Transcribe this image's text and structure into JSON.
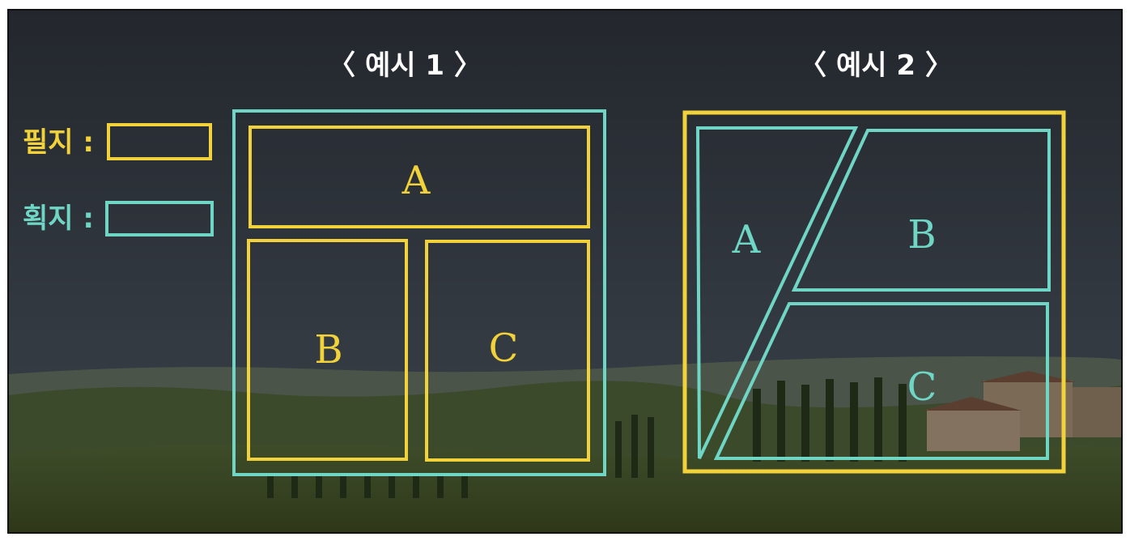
{
  "colors": {
    "pil_ji": "#f2d23a",
    "hoe_ji": "#6fd6c6",
    "sky_top": "#23272d",
    "sky_bottom": "#343b44",
    "hills": "#3a4a2c",
    "field": "#37431e"
  },
  "legend": {
    "pil_ji_label": "필지 :",
    "hoe_ji_label": "획지 :"
  },
  "example1": {
    "title": "〈 예시 1 〉",
    "regions": [
      "A",
      "B",
      "C"
    ]
  },
  "example2": {
    "title": "〈 예시 2 〉",
    "regions": [
      "A",
      "B",
      "C"
    ]
  }
}
